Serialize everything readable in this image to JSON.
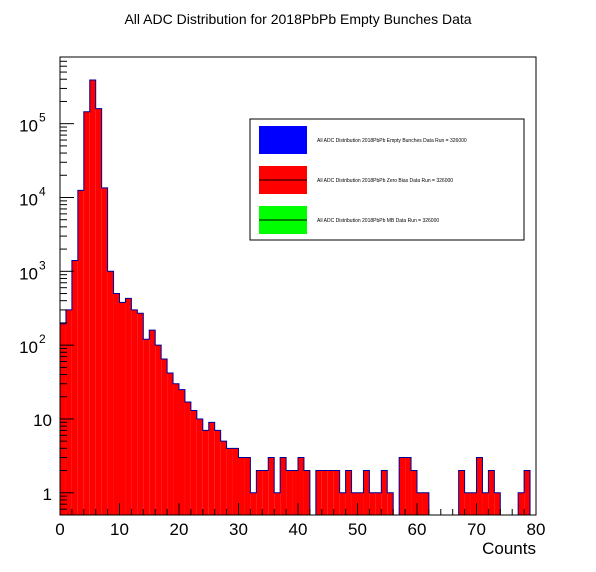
{
  "chart_data": {
    "type": "bar",
    "title": "All ADC Distribution for 2018PbPb Empty Bunches Data",
    "xlabel": "Counts",
    "ylabel": "",
    "xlim": [
      0,
      80
    ],
    "ylim_log": [
      0.5,
      800000
    ],
    "y_scale": "log",
    "bin_width": 1,
    "x_ticks": [
      "0",
      "10",
      "20",
      "30",
      "40",
      "50",
      "60",
      "70",
      "80"
    ],
    "y_ticks": [
      {
        "value": 1,
        "base": "1",
        "exp": ""
      },
      {
        "value": 10,
        "base": "10",
        "exp": ""
      },
      {
        "value": 100,
        "base": "10",
        "exp": "2"
      },
      {
        "value": 1000,
        "base": "10",
        "exp": "3"
      },
      {
        "value": 10000,
        "base": "10",
        "exp": "4"
      },
      {
        "value": 100000,
        "base": "10",
        "exp": "5"
      }
    ],
    "colors": {
      "fill": "#ff0000",
      "outline": "#000099"
    },
    "series": [
      {
        "name": "All ADC Distribution 2018PbPb Zero Bias Data Run = 326000",
        "values": [
          195,
          300,
          1400,
          12500,
          145000,
          390000,
          160000,
          13500,
          1000,
          500,
          380,
          430,
          300,
          270,
          120,
          160,
          100,
          65,
          42,
          30,
          25,
          17,
          13,
          10,
          7,
          9,
          7,
          5,
          4,
          4,
          3,
          3,
          1,
          2,
          2,
          3,
          1,
          3,
          2,
          2,
          3,
          2,
          0,
          2,
          2,
          2,
          2,
          1,
          2,
          1,
          1,
          2,
          1,
          1,
          2,
          1,
          0,
          3,
          3,
          2,
          1,
          1,
          0,
          0,
          0,
          0,
          0,
          2,
          1,
          1,
          3,
          1,
          2,
          1,
          0,
          0,
          0,
          1,
          2,
          0,
          1
        ]
      }
    ],
    "legend": {
      "position": "top-right",
      "entries": [
        {
          "label": "All ADC Distribution 2018PbPb Empty Bunches Data Run = 326000",
          "color": "#0000ff"
        },
        {
          "label": "All ADC Distribution 2018PbPb Zero Bias Data Run = 326000",
          "color": "#ff0000"
        },
        {
          "label": "All ADC Distribution 2018PbPb MB Data Run = 326000",
          "color": "#00ff00"
        }
      ]
    }
  }
}
